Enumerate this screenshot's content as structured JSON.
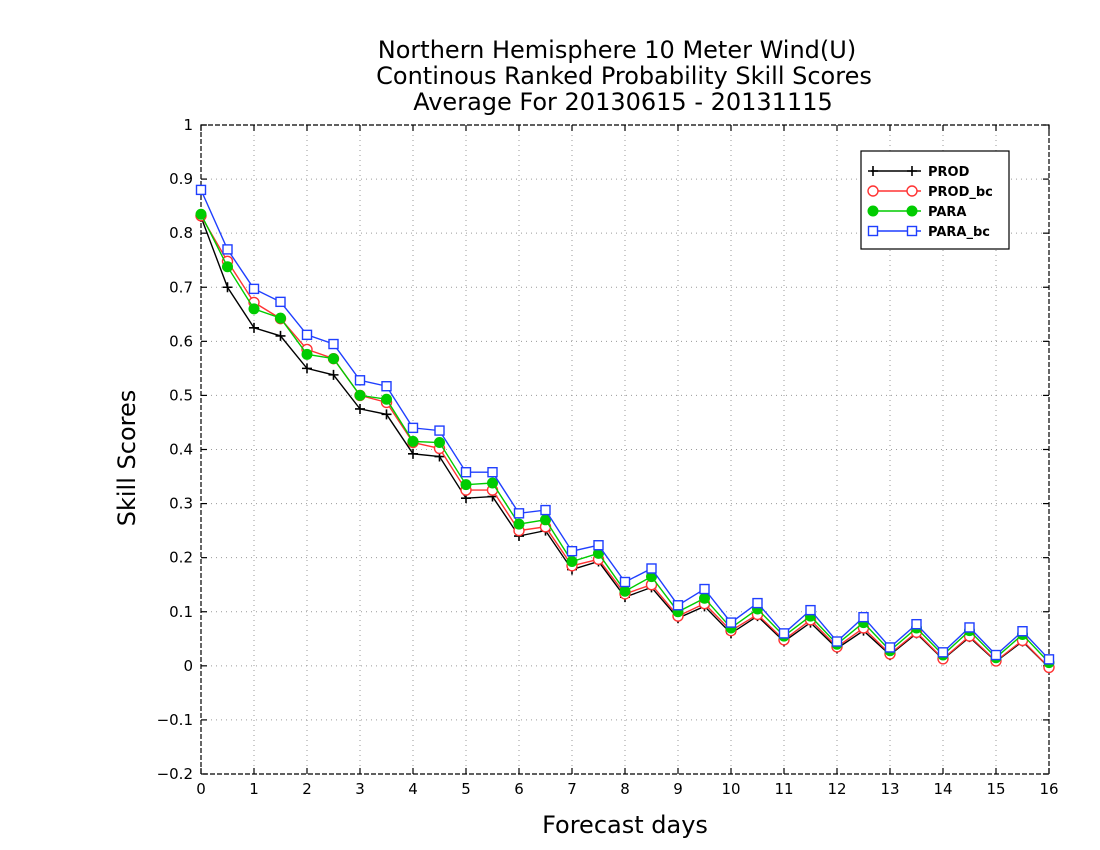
{
  "chart_data": {
    "type": "line",
    "title_lines": [
      "Northern Hemisphere 10 Meter Wind(U)",
      "Continous Ranked Probability Skill Scores",
      "Average For 20130615 - 20131115"
    ],
    "xlabel": "Forecast days",
    "ylabel": "Skill Scores",
    "xlim": [
      0,
      16
    ],
    "ylim": [
      -0.2,
      1
    ],
    "xticks": [
      "0",
      "1",
      "2",
      "3",
      "4",
      "5",
      "6",
      "7",
      "8",
      "9",
      "10",
      "11",
      "12",
      "13",
      "14",
      "15",
      "16"
    ],
    "yticks": [
      "−0.2",
      "−0.1",
      "0",
      "0.1",
      "0.2",
      "0.3",
      "0.4",
      "0.5",
      "0.6",
      "0.7",
      "0.8",
      "0.9",
      "1"
    ],
    "grid": true,
    "legend_position": "top-right",
    "x": [
      0,
      0.5,
      1,
      1.5,
      2,
      2.5,
      3,
      3.5,
      4,
      4.5,
      5,
      5.5,
      6,
      6.5,
      7,
      7.5,
      8,
      8.5,
      9,
      9.5,
      10,
      10.5,
      11,
      11.5,
      12,
      12.5,
      13,
      13.5,
      14,
      14.5,
      15,
      15.5,
      16
    ],
    "series": [
      {
        "name": "PROD",
        "color": "#000000",
        "marker": "plus",
        "values": [
          0.83,
          0.7,
          0.625,
          0.61,
          0.55,
          0.538,
          0.475,
          0.465,
          0.392,
          0.387,
          0.31,
          0.313,
          0.24,
          0.25,
          0.178,
          0.193,
          0.127,
          0.145,
          0.088,
          0.11,
          0.06,
          0.092,
          0.045,
          0.08,
          0.032,
          0.065,
          0.02,
          0.06,
          0.012,
          0.053,
          0.008,
          0.045,
          -0.003
        ]
      },
      {
        "name": "PROD_bc",
        "color": "#ff3333",
        "marker": "open-circle",
        "values": [
          0.832,
          0.748,
          0.672,
          0.642,
          0.585,
          0.568,
          0.5,
          0.487,
          0.413,
          0.402,
          0.325,
          0.325,
          0.25,
          0.257,
          0.185,
          0.197,
          0.133,
          0.15,
          0.092,
          0.115,
          0.065,
          0.095,
          0.048,
          0.085,
          0.035,
          0.07,
          0.022,
          0.062,
          0.013,
          0.055,
          0.009,
          0.047,
          -0.003
        ]
      },
      {
        "name": "PARA",
        "color": "#00cc00",
        "marker": "filled-circle",
        "values": [
          0.835,
          0.738,
          0.66,
          0.643,
          0.576,
          0.568,
          0.5,
          0.493,
          0.415,
          0.413,
          0.335,
          0.338,
          0.262,
          0.27,
          0.193,
          0.208,
          0.138,
          0.165,
          0.1,
          0.125,
          0.07,
          0.105,
          0.055,
          0.092,
          0.04,
          0.08,
          0.028,
          0.07,
          0.02,
          0.065,
          0.015,
          0.058,
          0.006
        ]
      },
      {
        "name": "PARA_bc",
        "color": "#1f3fff",
        "marker": "open-square",
        "values": [
          0.88,
          0.77,
          0.697,
          0.673,
          0.612,
          0.595,
          0.528,
          0.517,
          0.44,
          0.435,
          0.358,
          0.358,
          0.282,
          0.288,
          0.212,
          0.223,
          0.155,
          0.18,
          0.112,
          0.142,
          0.08,
          0.116,
          0.06,
          0.103,
          0.045,
          0.09,
          0.034,
          0.077,
          0.025,
          0.071,
          0.02,
          0.064,
          0.012
        ]
      }
    ]
  }
}
